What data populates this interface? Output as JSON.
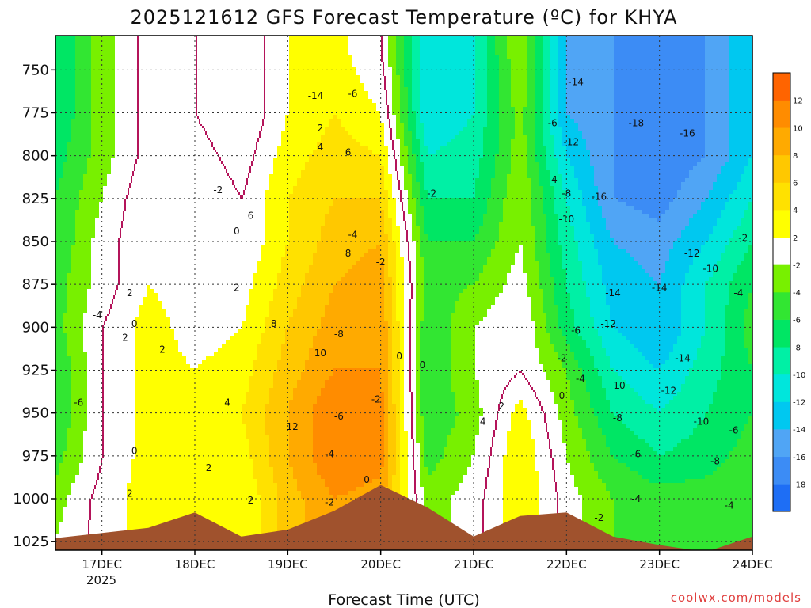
{
  "chart_data": {
    "type": "heatmap",
    "title": "2025121612 GFS Forecast Temperature (ºC) for KHYA",
    "xlabel": "Forecast Time (UTC)",
    "credit": "coolwx.com/models",
    "x_ticks": [
      "17DEC",
      "18DEC",
      "19DEC",
      "20DEC",
      "21DEC",
      "22DEC",
      "23DEC",
      "24DEC"
    ],
    "x_tick_year": "2025",
    "x_range_days": [
      -0.5,
      7.0
    ],
    "y_ticks": [
      750,
      775,
      800,
      825,
      850,
      875,
      900,
      925,
      950,
      975,
      1000,
      1025
    ],
    "y_range_hpa": [
      730,
      1030
    ],
    "grid": true,
    "colorbar": {
      "placement": "right",
      "bounds": [
        -20,
        -18,
        -16,
        -14,
        -12,
        -10,
        -8,
        -6,
        -4,
        -2,
        2,
        4,
        6,
        8,
        10,
        12,
        14
      ],
      "labels": [
        "12",
        "10",
        "8",
        "6",
        "4",
        "2",
        "-2",
        "-4",
        "-6",
        "-8",
        "-10",
        "-12",
        "-14",
        "-16",
        "-18"
      ],
      "colors": [
        "#1e6ef5",
        "#3c8cf5",
        "#50a5f5",
        "#00c8f0",
        "#00e6dc",
        "#00f0a5",
        "#00e664",
        "#32e632",
        "#78f000",
        "#ffffff",
        "#ffff00",
        "#ffe100",
        "#ffc800",
        "#ffaa00",
        "#ff8c00",
        "#ff6400"
      ],
      "zero_line_color": "#b4145a"
    },
    "surface_pressure": {
      "x": [
        -0.5,
        0.0,
        0.5,
        1.0,
        1.5,
        2.0,
        2.5,
        3.0,
        3.5,
        4.0,
        4.5,
        5.0,
        5.5,
        6.0,
        6.5,
        7.0
      ],
      "p": [
        1023,
        1020,
        1017,
        1008,
        1022,
        1018,
        1007,
        992,
        1005,
        1022,
        1010,
        1008,
        1022,
        1027,
        1031,
        1022
      ]
    },
    "temperature_c": {
      "x": [
        -0.5,
        0.0,
        0.5,
        1.0,
        1.5,
        2.0,
        2.5,
        3.0,
        3.5,
        4.0,
        4.5,
        5.0,
        5.5,
        6.0,
        6.5,
        7.0
      ],
      "p": [
        740,
        775,
        800,
        825,
        850,
        875,
        900,
        925,
        950,
        975,
        1000,
        1025
      ],
      "values": [
        [
          -8,
          -3,
          1,
          0,
          -2,
          2,
          3,
          0,
          -12,
          -10,
          -2,
          -14,
          -16,
          -18,
          -16,
          -12
        ],
        [
          -8,
          -3,
          1,
          0,
          -2,
          2,
          4,
          2,
          -12,
          -10,
          -3,
          -14,
          -16,
          -18,
          -16,
          -12
        ],
        [
          -7,
          -3,
          1,
          1,
          -1,
          3,
          5,
          4,
          -10,
          -9,
          -3,
          -12,
          -16,
          -18,
          -16,
          -12
        ],
        [
          -6,
          -2,
          2,
          2,
          0,
          4,
          6,
          6,
          -8,
          -8,
          -2,
          -10,
          -16,
          -17,
          -14,
          -10
        ],
        [
          -6,
          -1,
          2,
          1,
          0,
          4,
          7,
          8,
          -6,
          -6,
          -2,
          -9,
          -14,
          -15,
          -12,
          -8
        ],
        [
          -5,
          -1,
          2,
          1,
          1,
          5,
          8,
          9,
          -5,
          -4,
          -1,
          -8,
          -13,
          -14,
          -10,
          -6
        ],
        [
          -5,
          0,
          3,
          1,
          2,
          6,
          9,
          10,
          -6,
          -2,
          0,
          -7,
          -12,
          -14,
          -10,
          -5
        ],
        [
          -6,
          0,
          3,
          2,
          3,
          7,
          10,
          10,
          -6,
          -2,
          0,
          -4,
          -10,
          -12,
          -9,
          -6
        ],
        [
          -6,
          0,
          3,
          2,
          4,
          8,
          12,
          11,
          -6,
          -3,
          3,
          -3,
          -8,
          -10,
          -8,
          -6
        ],
        [
          -5,
          0,
          3,
          3,
          3,
          8,
          12,
          11,
          -5,
          -2,
          4,
          -2,
          -6,
          -8,
          -7,
          -5
        ],
        [
          -3,
          1,
          3,
          4,
          2,
          7,
          10,
          9,
          -3,
          -1,
          4,
          -1,
          -4,
          -5,
          -5,
          -4
        ],
        [
          -2,
          1,
          3,
          4,
          2,
          7,
          10,
          9,
          -3,
          -1,
          4,
          -1,
          -4,
          -5,
          -5,
          -4
        ]
      ]
    },
    "contour_labels": [
      {
        "text": "-14",
        "x": 5.1,
        "p": 757
      },
      {
        "text": "-14",
        "x": 2.3,
        "p": 765
      },
      {
        "text": "-6",
        "x": 2.7,
        "p": 764
      },
      {
        "text": "-18",
        "x": 5.75,
        "p": 781
      },
      {
        "text": "-16",
        "x": 6.3,
        "p": 787
      },
      {
        "text": "-12",
        "x": 5.05,
        "p": 792
      },
      {
        "text": "-6",
        "x": 4.85,
        "p": 781
      },
      {
        "text": "-4",
        "x": 4.85,
        "p": 814
      },
      {
        "text": "-2",
        "x": 1.25,
        "p": 820
      },
      {
        "text": "-2",
        "x": 3.55,
        "p": 822
      },
      {
        "text": "-8",
        "x": 5.0,
        "p": 822
      },
      {
        "text": "-16",
        "x": 5.35,
        "p": 824
      },
      {
        "text": "-10",
        "x": 5.0,
        "p": 837
      },
      {
        "text": "-4",
        "x": 2.7,
        "p": 846
      },
      {
        "text": "-2",
        "x": 3.0,
        "p": 862
      },
      {
        "text": "-2",
        "x": 6.9,
        "p": 848
      },
      {
        "text": "-12",
        "x": 6.35,
        "p": 857
      },
      {
        "text": "-10",
        "x": 6.55,
        "p": 866
      },
      {
        "text": "-14",
        "x": 6.0,
        "p": 877
      },
      {
        "text": "-14",
        "x": 5.5,
        "p": 880
      },
      {
        "text": "-4",
        "x": 6.85,
        "p": 880
      },
      {
        "text": "-4",
        "x": -0.05,
        "p": 893
      },
      {
        "text": "-12",
        "x": 5.45,
        "p": 898
      },
      {
        "text": "-6",
        "x": 5.1,
        "p": 902
      },
      {
        "text": "-8",
        "x": 2.55,
        "p": 904
      },
      {
        "text": "-14",
        "x": 6.25,
        "p": 918
      },
      {
        "text": "-2",
        "x": 4.95,
        "p": 918
      },
      {
        "text": "-4",
        "x": 5.15,
        "p": 930
      },
      {
        "text": "-10",
        "x": 5.55,
        "p": 934
      },
      {
        "text": "-12",
        "x": 6.1,
        "p": 937
      },
      {
        "text": "-2",
        "x": 2.95,
        "p": 942
      },
      {
        "text": "0",
        "x": 4.95,
        "p": 940
      },
      {
        "text": "-6",
        "x": -0.25,
        "p": 944
      },
      {
        "text": "-6",
        "x": 2.55,
        "p": 952
      },
      {
        "text": "-8",
        "x": 5.55,
        "p": 953
      },
      {
        "text": "-10",
        "x": 6.45,
        "p": 955
      },
      {
        "text": "-6",
        "x": 6.8,
        "p": 960
      },
      {
        "text": "-4",
        "x": 2.45,
        "p": 974
      },
      {
        "text": "-6",
        "x": 5.75,
        "p": 974
      },
      {
        "text": "-8",
        "x": 6.6,
        "p": 978
      },
      {
        "text": "-4",
        "x": 5.75,
        "p": 1000
      },
      {
        "text": "-4",
        "x": 6.75,
        "p": 1004
      },
      {
        "text": "-2",
        "x": 2.45,
        "p": 1002
      },
      {
        "text": "-2",
        "x": 5.35,
        "p": 1011
      },
      {
        "text": "0",
        "x": 0.35,
        "p": 898
      },
      {
        "text": "0",
        "x": 0.35,
        "p": 972
      },
      {
        "text": "0",
        "x": 1.45,
        "p": 844
      },
      {
        "text": "0",
        "x": 3.2,
        "p": 917
      },
      {
        "text": "0",
        "x": 3.45,
        "p": 922
      },
      {
        "text": "0",
        "x": 2.85,
        "p": 989
      },
      {
        "text": "2",
        "x": 0.3,
        "p": 880
      },
      {
        "text": "2",
        "x": 0.25,
        "p": 906
      },
      {
        "text": "2",
        "x": 0.3,
        "p": 997
      },
      {
        "text": "2",
        "x": 0.65,
        "p": 913
      },
      {
        "text": "2",
        "x": 1.15,
        "p": 982
      },
      {
        "text": "2",
        "x": 1.45,
        "p": 877
      },
      {
        "text": "2",
        "x": 1.6,
        "p": 1001
      },
      {
        "text": "2",
        "x": 2.35,
        "p": 784
      },
      {
        "text": "2",
        "x": 4.3,
        "p": 946
      },
      {
        "text": "4",
        "x": 1.35,
        "p": 944
      },
      {
        "text": "4",
        "x": 2.35,
        "p": 795
      },
      {
        "text": "4",
        "x": 4.1,
        "p": 955
      },
      {
        "text": "6",
        "x": 1.6,
        "p": 835
      },
      {
        "text": "6",
        "x": 2.65,
        "p": 798
      },
      {
        "text": "8",
        "x": 1.85,
        "p": 898
      },
      {
        "text": "8",
        "x": 2.65,
        "p": 857
      },
      {
        "text": "10",
        "x": 2.35,
        "p": 915
      },
      {
        "text": "12",
        "x": 2.05,
        "p": 958
      }
    ]
  }
}
